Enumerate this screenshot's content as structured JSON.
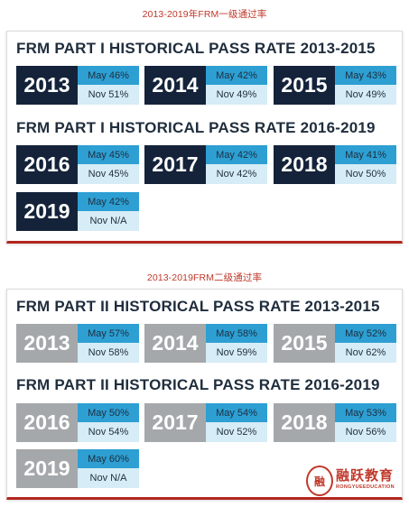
{
  "captions": {
    "part1": "2013-2019年FRM一级通过率",
    "part2": "2013-2019FRM二级通过率"
  },
  "part1": {
    "heading_a": "FRM PART I HISTORICAL PASS RATE 2013-2015",
    "heading_b": "FRM PART I HISTORICAL PASS RATE 2016-2019",
    "tiles": [
      {
        "year": "2013",
        "may": "May 46%",
        "nov": "Nov 51%"
      },
      {
        "year": "2014",
        "may": "May 42%",
        "nov": "Nov 49%"
      },
      {
        "year": "2015",
        "may": "May 43%",
        "nov": "Nov 49%"
      },
      {
        "year": "2016",
        "may": "May 45%",
        "nov": "Nov 45%"
      },
      {
        "year": "2017",
        "may": "May 42%",
        "nov": "Nov 42%"
      },
      {
        "year": "2018",
        "may": "May 41%",
        "nov": "Nov 50%"
      },
      {
        "year": "2019",
        "may": "May 42%",
        "nov": "Nov N/A"
      }
    ]
  },
  "part2": {
    "heading_a": "FRM PART II HISTORICAL PASS RATE 2013-2015",
    "heading_b": "FRM PART II HISTORICAL PASS RATE 2016-2019",
    "tiles": [
      {
        "year": "2013",
        "may": "May 57%",
        "nov": "Nov 58%"
      },
      {
        "year": "2014",
        "may": "May 58%",
        "nov": "Nov 59%"
      },
      {
        "year": "2015",
        "may": "May 52%",
        "nov": "Nov 62%"
      },
      {
        "year": "2016",
        "may": "May 50%",
        "nov": "Nov 54%"
      },
      {
        "year": "2017",
        "may": "May 54%",
        "nov": "Nov 52%"
      },
      {
        "year": "2018",
        "may": "May 53%",
        "nov": "Nov 56%"
      },
      {
        "year": "2019",
        "may": "May 60%",
        "nov": "Nov N/A"
      }
    ]
  },
  "logo": {
    "name": "融跃教育",
    "sub": "RONGYUEEDUCATION"
  },
  "colors": {
    "part1_year_bg": "#14233a",
    "part2_year_bg": "#a5a8ab",
    "may_bg": "#2d9fd3",
    "nov_bg": "#d6ecf6",
    "accent_red": "#b3261e"
  }
}
